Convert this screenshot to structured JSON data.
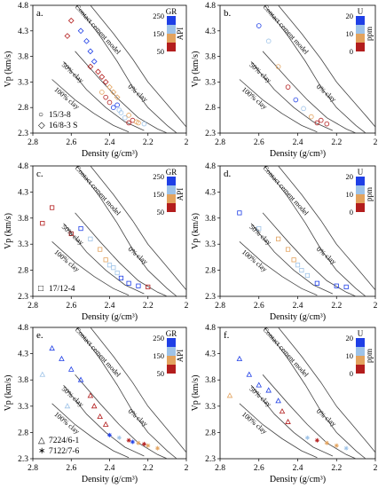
{
  "chart_data": [
    {
      "panel": "a.",
      "type": "scatter",
      "xlabel": "Density (g/cm³)",
      "ylabel": "Vp (km/s)",
      "xlim": [
        2.8,
        2.0
      ],
      "ylim": [
        2.3,
        4.8
      ],
      "xticks": [
        "2.8",
        "2.6",
        "2.4",
        "2.2",
        "2"
      ],
      "yticks": [
        "2.3",
        "2.8",
        "3.3",
        "3.8",
        "4.3",
        "4.8"
      ],
      "colorbar": {
        "title": "GR",
        "unit": "API",
        "ticks": [
          "250",
          "150",
          "50"
        ],
        "colors": [
          "#1f3fe6",
          "#9ec3e8",
          "#e3a35e",
          "#b31d1d"
        ]
      },
      "curve_labels": [
        "Contact cement model",
        "50% clay",
        "100% clay",
        "0% clay"
      ],
      "legend": [
        {
          "marker": "○",
          "label": "15/3-8"
        },
        {
          "marker": "◇",
          "label": "16/8-3 S"
        }
      ],
      "series": [
        {
          "name": "15/3-8",
          "marker": "circle",
          "points": [
            [
              2.3,
              2.5
            ],
            [
              2.28,
              2.55
            ],
            [
              2.26,
              2.52
            ],
            [
              2.32,
              2.6
            ],
            [
              2.35,
              2.75
            ],
            [
              2.38,
              2.8
            ],
            [
              2.4,
              2.9
            ],
            [
              2.42,
              3.0
            ],
            [
              2.44,
              3.1
            ],
            [
              2.3,
              2.65
            ],
            [
              2.25,
              2.5
            ],
            [
              2.22,
              2.48
            ],
            [
              2.34,
              2.7
            ],
            [
              2.36,
              2.85
            ]
          ]
        },
        {
          "name": "16/8-3 S",
          "marker": "diamond",
          "points": [
            [
              2.55,
              4.3
            ],
            [
              2.52,
              4.1
            ],
            [
              2.5,
              3.9
            ],
            [
              2.48,
              3.7
            ],
            [
              2.46,
              3.5
            ],
            [
              2.44,
              3.4
            ],
            [
              2.42,
              3.3
            ],
            [
              2.4,
              3.2
            ],
            [
              2.38,
              3.1
            ],
            [
              2.36,
              3.0
            ],
            [
              2.6,
              4.5
            ],
            [
              2.62,
              4.2
            ],
            [
              2.5,
              3.6
            ]
          ]
        }
      ]
    },
    {
      "panel": "b.",
      "type": "scatter",
      "xlabel": "Density (g/cm³)",
      "ylabel": "Vp (km/s)",
      "xlim": [
        2.8,
        2.0
      ],
      "ylim": [
        2.3,
        4.8
      ],
      "xticks": [
        "2.8",
        "2.6",
        "2.4",
        "2.2",
        "2"
      ],
      "yticks": [
        "2.3",
        "2.8",
        "3.3",
        "3.8",
        "4.3",
        "4.8"
      ],
      "colorbar": {
        "title": "U",
        "unit": "ppm",
        "ticks": [
          "20",
          "10",
          "0"
        ],
        "colors": [
          "#1f3fe6",
          "#9ec3e8",
          "#e3a35e",
          "#b31d1d"
        ]
      },
      "curve_labels": [
        "Contact cement model",
        "50% clay",
        "100% clay",
        "0% clay"
      ],
      "legend": [],
      "series": [
        {
          "name": "",
          "marker": "circle",
          "points": [
            [
              2.3,
              2.5
            ],
            [
              2.28,
              2.55
            ],
            [
              2.33,
              2.62
            ],
            [
              2.37,
              2.78
            ],
            [
              2.41,
              2.95
            ],
            [
              2.45,
              3.2
            ],
            [
              2.5,
              3.6
            ],
            [
              2.55,
              4.1
            ],
            [
              2.6,
              4.4
            ],
            [
              2.25,
              2.48
            ]
          ]
        }
      ]
    },
    {
      "panel": "c.",
      "type": "scatter",
      "xlabel": "Density (g/cm³)",
      "ylabel": "Vp (km/s)",
      "xlim": [
        2.8,
        2.0
      ],
      "ylim": [
        2.3,
        4.8
      ],
      "xticks": [
        "2.8",
        "2.6",
        "2.4",
        "2.2",
        "2"
      ],
      "yticks": [
        "2.3",
        "2.8",
        "3.3",
        "3.8",
        "4.3",
        "4.8"
      ],
      "colorbar": {
        "title": "GR",
        "unit": "API",
        "ticks": [
          "250",
          "150",
          "50"
        ],
        "colors": [
          "#1f3fe6",
          "#9ec3e8",
          "#e3a35e",
          "#b31d1d"
        ]
      },
      "curve_labels": [
        "Contact cement model",
        "50% clay",
        "100% clay",
        "0% clay"
      ],
      "legend": [
        {
          "marker": "□",
          "label": "17/12-4"
        }
      ],
      "series": [
        {
          "name": "17/12-4",
          "marker": "square",
          "points": [
            [
              2.45,
              3.2
            ],
            [
              2.42,
              3.0
            ],
            [
              2.4,
              2.9
            ],
            [
              2.38,
              2.85
            ],
            [
              2.36,
              2.75
            ],
            [
              2.34,
              2.65
            ],
            [
              2.3,
              2.55
            ],
            [
              2.25,
              2.5
            ],
            [
              2.2,
              2.48
            ],
            [
              2.5,
              3.4
            ],
            [
              2.55,
              3.6
            ],
            [
              2.7,
              4.0
            ],
            [
              2.75,
              3.7
            ],
            [
              2.6,
              3.5
            ]
          ]
        }
      ]
    },
    {
      "panel": "d.",
      "type": "scatter",
      "xlabel": "Density (g/cm³)",
      "ylabel": "Vp (km/s)",
      "xlim": [
        2.8,
        2.0
      ],
      "ylim": [
        2.3,
        4.8
      ],
      "xticks": [
        "2.8",
        "2.6",
        "2.4",
        "2.2",
        "2"
      ],
      "yticks": [
        "2.3",
        "2.8",
        "3.3",
        "3.8",
        "4.3",
        "4.8"
      ],
      "colorbar": {
        "title": "U",
        "unit": "ppm",
        "ticks": [
          "20",
          "10",
          "0"
        ],
        "colors": [
          "#1f3fe6",
          "#9ec3e8",
          "#e3a35e",
          "#b31d1d"
        ]
      },
      "curve_labels": [
        "Contact cement model",
        "50% clay",
        "100% clay",
        "0% clay"
      ],
      "legend": [],
      "series": [
        {
          "name": "",
          "marker": "square",
          "points": [
            [
              2.45,
              3.2
            ],
            [
              2.42,
              3.0
            ],
            [
              2.4,
              2.9
            ],
            [
              2.38,
              2.8
            ],
            [
              2.35,
              2.7
            ],
            [
              2.3,
              2.55
            ],
            [
              2.2,
              2.5
            ],
            [
              2.15,
              2.48
            ],
            [
              2.5,
              3.4
            ],
            [
              2.6,
              3.6
            ],
            [
              2.7,
              3.9
            ]
          ]
        }
      ]
    },
    {
      "panel": "e.",
      "type": "scatter",
      "xlabel": "Density (g/cm³)",
      "ylabel": "Vp (km/s)",
      "xlim": [
        2.8,
        2.0
      ],
      "ylim": [
        2.3,
        4.8
      ],
      "xticks": [
        "2.8",
        "2.6",
        "2.4",
        "2.2",
        "2"
      ],
      "yticks": [
        "2.3",
        "2.8",
        "3.3",
        "3.8",
        "4.3",
        "4.8"
      ],
      "colorbar": {
        "title": "GR",
        "unit": "API",
        "ticks": [
          "250",
          "150",
          "50"
        ],
        "colors": [
          "#1f3fe6",
          "#9ec3e8",
          "#e3a35e",
          "#b31d1d"
        ]
      },
      "curve_labels": [
        "Contact cement model",
        "50% clay",
        "100% clay",
        "0% clay"
      ],
      "legend": [
        {
          "marker": "△",
          "label": "7224/6-1"
        },
        {
          "marker": "∗",
          "label": "7122/7-6"
        }
      ],
      "series": [
        {
          "name": "7224/6-1",
          "marker": "triangle",
          "points": [
            [
              2.7,
              4.4
            ],
            [
              2.65,
              4.2
            ],
            [
              2.6,
              4.0
            ],
            [
              2.55,
              3.8
            ],
            [
              2.5,
              3.5
            ],
            [
              2.48,
              3.3
            ],
            [
              2.45,
              3.1
            ],
            [
              2.42,
              2.95
            ],
            [
              2.75,
              3.9
            ],
            [
              2.62,
              3.3
            ]
          ]
        },
        {
          "name": "7122/7-6",
          "marker": "asterisk",
          "points": [
            [
              2.3,
              2.65
            ],
            [
              2.25,
              2.6
            ],
            [
              2.2,
              2.55
            ],
            [
              2.15,
              2.5
            ],
            [
              2.35,
              2.7
            ],
            [
              2.4,
              2.75
            ],
            [
              2.28,
              2.62
            ],
            [
              2.22,
              2.58
            ]
          ]
        }
      ]
    },
    {
      "panel": "f.",
      "type": "scatter",
      "xlabel": "Density (g/cm³)",
      "ylabel": "Vp (km/s)",
      "xlim": [
        2.8,
        2.0
      ],
      "ylim": [
        2.3,
        4.8
      ],
      "xticks": [
        "2.8",
        "2.6",
        "2.4",
        "2.2",
        "2"
      ],
      "yticks": [
        "2.3",
        "2.8",
        "3.3",
        "3.8",
        "4.3",
        "4.8"
      ],
      "colorbar": {
        "title": "U",
        "unit": "ppm",
        "ticks": [
          "20",
          "10",
          "0"
        ],
        "colors": [
          "#1f3fe6",
          "#9ec3e8",
          "#e3a35e",
          "#b31d1d"
        ]
      },
      "curve_labels": [
        "Contact cement model",
        "50% clay",
        "100% clay",
        "0% clay"
      ],
      "legend": [],
      "series": [
        {
          "name": "7224/6-1",
          "marker": "triangle",
          "points": [
            [
              2.7,
              4.2
            ],
            [
              2.65,
              3.9
            ],
            [
              2.6,
              3.7
            ],
            [
              2.55,
              3.6
            ],
            [
              2.5,
              3.4
            ],
            [
              2.48,
              3.2
            ],
            [
              2.45,
              3.0
            ],
            [
              2.75,
              3.5
            ]
          ]
        },
        {
          "name": "7122/7-6",
          "marker": "asterisk",
          "points": [
            [
              2.3,
              2.65
            ],
            [
              2.25,
              2.6
            ],
            [
              2.2,
              2.55
            ],
            [
              2.35,
              2.7
            ],
            [
              2.15,
              2.5
            ]
          ]
        }
      ]
    }
  ]
}
